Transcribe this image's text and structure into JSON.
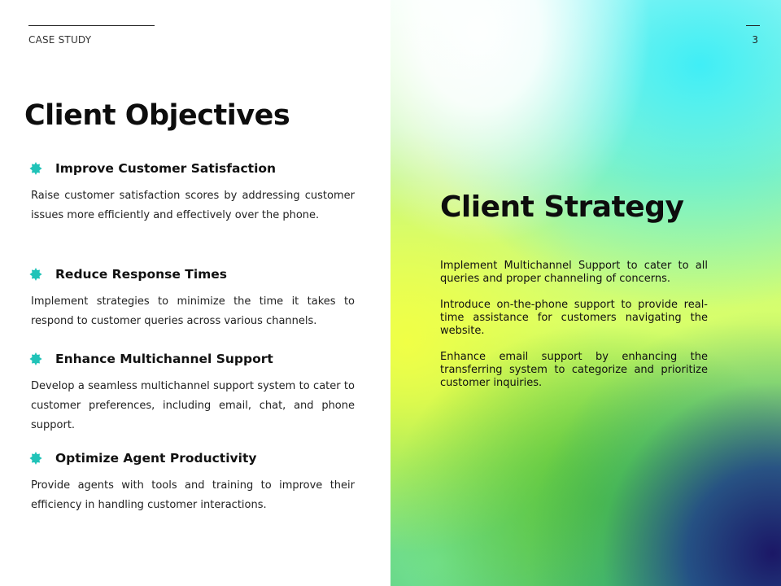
{
  "header": {
    "eyebrow": "CASE STUDY",
    "page_number": "3"
  },
  "left": {
    "title": "Client Objectives",
    "objectives": [
      {
        "title": "Improve Customer Satisfaction",
        "description": "Raise customer satisfaction scores by addressing customer issues more efficiently and effectively over the phone.",
        "icon": "badge-icon"
      },
      {
        "title": "Reduce Response Times",
        "description": "Implement strategies to minimize the time it takes to respond to customer queries across various channels.",
        "icon": "badge-icon"
      },
      {
        "title": "Enhance Multichannel Support",
        "description": "Develop a seamless multichannel support system to cater to customer preferences, including email, chat, and phone support.",
        "icon": "badge-icon"
      },
      {
        "title": "Optimize Agent Productivity",
        "description": "Provide agents with tools and training to improve their efficiency in handling customer interactions.",
        "icon": "badge-icon"
      }
    ]
  },
  "right": {
    "title": "Client Strategy",
    "paragraphs": [
      "Implement Multichannel Support to cater to all queries and proper channeling of concerns.",
      "Introduce on-the-phone support to provide real-time assistance for customers navigating the website.",
      "Enhance email support by enhancing the transferring system to categorize and prioritize customer inquiries."
    ]
  },
  "colors": {
    "accent": "#20c3b8",
    "text": "#111111",
    "cyan": "#40eef6",
    "lime": "#e8ff55",
    "navy": "#1b1766"
  }
}
